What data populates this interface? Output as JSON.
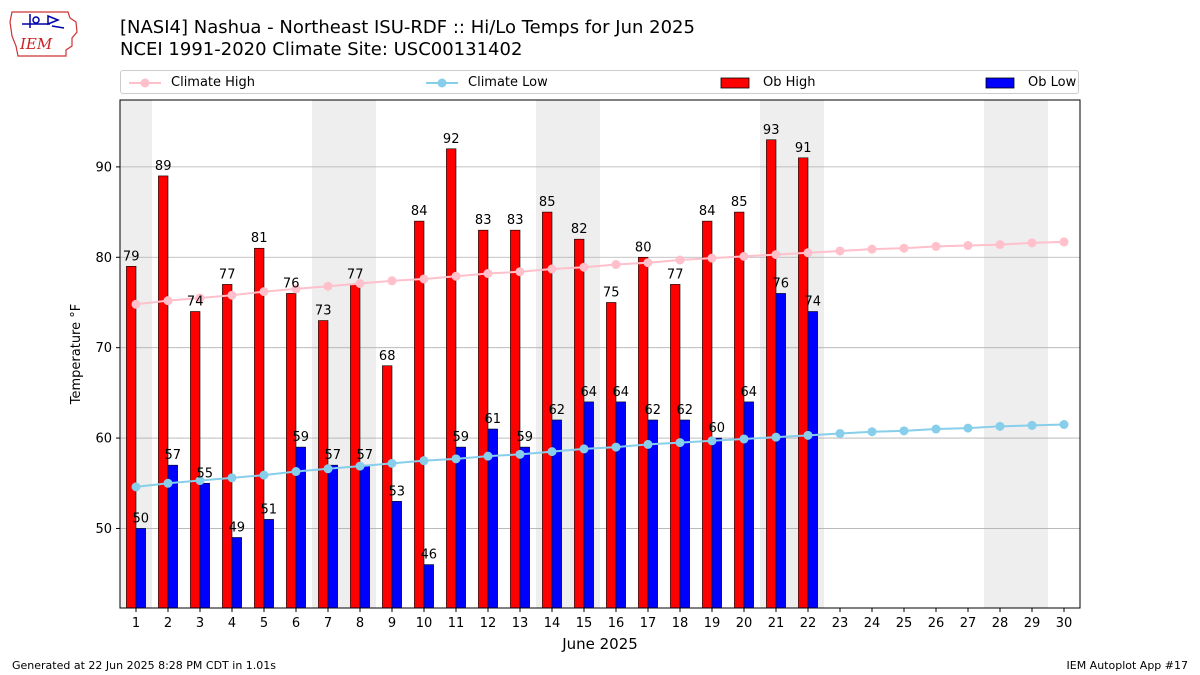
{
  "logo": {
    "text": "IEM"
  },
  "title": {
    "line1": "[NASI4] Nashua - Northeast ISU-RDF :: Hi/Lo Temps for Jun 2025",
    "line2": "NCEI 1991-2020 Climate Site: USC00131402"
  },
  "footer": {
    "left": "Generated at 22 Jun 2025 8:28 PM CDT in 1.01s",
    "right": "IEM Autoplot App #17"
  },
  "colors": {
    "ob_high": "#ff0000",
    "ob_low": "#0000ff",
    "climate_high": "#ffc0cb",
    "climate_low": "#87ceeb",
    "weekend_shade": "#eeeeee",
    "grid": "#b0b0b0"
  },
  "chart_data": {
    "type": "bar",
    "xlabel": "June 2025",
    "ylabel": "Temperature °F",
    "ylim": [
      41.2,
      97.4
    ],
    "yticks": [
      50,
      60,
      70,
      80,
      90
    ],
    "grid": "horizontal",
    "legend_placement": "top",
    "categories": [
      "1",
      "2",
      "3",
      "4",
      "5",
      "6",
      "7",
      "8",
      "9",
      "10",
      "11",
      "12",
      "13",
      "14",
      "15",
      "16",
      "17",
      "18",
      "19",
      "20",
      "21",
      "22",
      "23",
      "24",
      "25",
      "26",
      "27",
      "28",
      "29",
      "30"
    ],
    "weekend_days": [
      1,
      7,
      8,
      14,
      15,
      21,
      22,
      28,
      29
    ],
    "series": [
      {
        "name": "Climate High",
        "kind": "line",
        "values": [
          74.8,
          75.2,
          75.5,
          75.8,
          76.2,
          76.5,
          76.8,
          77.1,
          77.4,
          77.6,
          77.9,
          78.2,
          78.4,
          78.7,
          78.9,
          79.2,
          79.4,
          79.7,
          79.9,
          80.1,
          80.3,
          80.5,
          80.7,
          80.9,
          81.0,
          81.2,
          81.3,
          81.4,
          81.6,
          81.7
        ]
      },
      {
        "name": "Climate Low",
        "kind": "line",
        "values": [
          54.6,
          55.0,
          55.3,
          55.6,
          55.9,
          56.3,
          56.6,
          56.9,
          57.2,
          57.5,
          57.7,
          58.0,
          58.2,
          58.5,
          58.8,
          59.0,
          59.3,
          59.5,
          59.7,
          59.9,
          60.1,
          60.3,
          60.5,
          60.7,
          60.8,
          61.0,
          61.1,
          61.3,
          61.4,
          61.5
        ]
      },
      {
        "name": "Ob High",
        "kind": "bar",
        "values": [
          79,
          89,
          74,
          77,
          81,
          76,
          73,
          77,
          68,
          84,
          92,
          83,
          83,
          85,
          82,
          75,
          80,
          77,
          84,
          85,
          93,
          91,
          null,
          null,
          null,
          null,
          null,
          null,
          null,
          null
        ]
      },
      {
        "name": "Ob Low",
        "kind": "bar",
        "values": [
          50,
          57,
          55,
          49,
          51,
          59,
          57,
          57,
          53,
          46,
          59,
          61,
          59,
          62,
          64,
          64,
          62,
          62,
          60,
          64,
          76,
          74,
          null,
          null,
          null,
          null,
          null,
          null,
          null,
          null
        ]
      }
    ]
  }
}
